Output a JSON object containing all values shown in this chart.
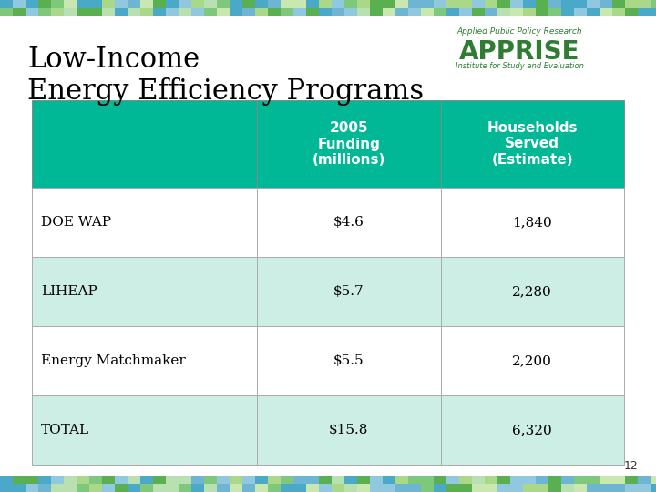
{
  "title_line1": "Low-Income",
  "title_line2": "Energy Efficiency Programs",
  "title_fontsize": 22,
  "title_color": "#000000",
  "background_color": "#ffffff",
  "border_color_green": "#7dc87a",
  "border_color_blue": "#6eb5d4",
  "header_bg": "#00b896",
  "header_text_color": "#ffffff",
  "row_bg_alt": "#cdeee5",
  "row_bg_white": "#ffffff",
  "row_text_color": "#000000",
  "col_headers": [
    "2005\nFunding\n(millions)",
    "Households\nServed\n(Estimate)"
  ],
  "row_labels": [
    "DOE WAP",
    "LIHEAP",
    "Energy Matchmaker",
    "TOTAL"
  ],
  "col1_values": [
    "$4.6",
    "$5.7",
    "$5.5",
    "$15.8"
  ],
  "col2_values": [
    "1,840",
    "2,280",
    "2,200",
    "6,320"
  ],
  "page_number": "12",
  "apprise_color": "#2e7d32",
  "apprise_text": "APPRISE",
  "apprise_sub1": "Applied Public Policy Research",
  "apprise_sub2": "Institute for Study and Evaluation"
}
